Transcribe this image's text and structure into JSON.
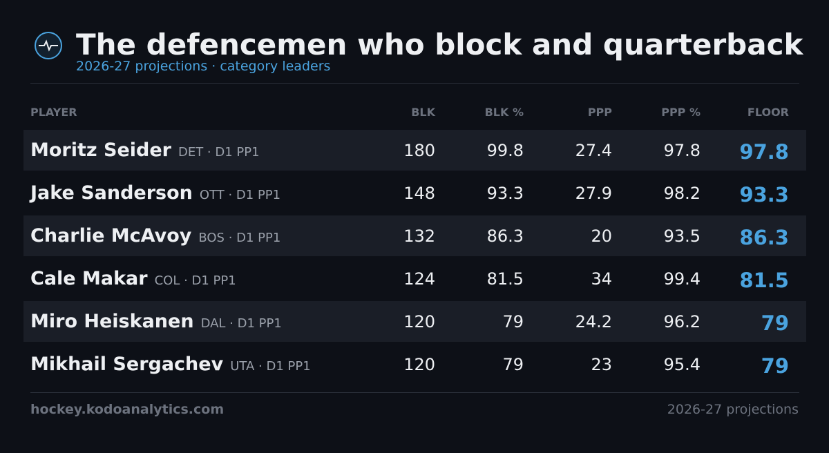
{
  "header": {
    "title": "The defencemen who block and quarterback",
    "subtitle": "2026-27 projections · category leaders"
  },
  "table": {
    "columns": [
      "PLAYER",
      "BLK",
      "BLK %",
      "PPP",
      "PPP %",
      "FLOOR"
    ],
    "rows": [
      [
        "Moritz Seider",
        "DET · D1 PP1",
        "180",
        "99.8",
        "27.4",
        "97.8",
        "97.8"
      ],
      [
        "Jake Sanderson",
        "OTT · D1 PP1",
        "148",
        "93.3",
        "27.9",
        "98.2",
        "93.3"
      ],
      [
        "Charlie McAvoy",
        "BOS · D1 PP1",
        "132",
        "86.3",
        "20",
        "93.5",
        "86.3"
      ],
      [
        "Cale Makar",
        "COL · D1 PP1",
        "124",
        "81.5",
        "34",
        "99.4",
        "81.5"
      ],
      [
        "Miro Heiskanen",
        "DAL · D1 PP1",
        "120",
        "79",
        "24.2",
        "96.2",
        "79"
      ],
      [
        "Mikhail Sergachev",
        "UTA · D1 PP1",
        "120",
        "79",
        "23",
        "95.4",
        "79"
      ]
    ]
  },
  "footer": {
    "left": "hockey.kodoanalytics.com",
    "right": "2026-27 projections"
  }
}
